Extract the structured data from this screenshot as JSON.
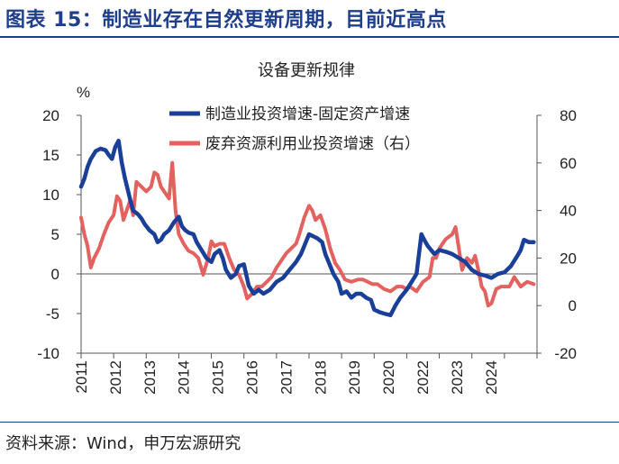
{
  "figure": {
    "title": "图表 15：制造业存在自然更新周期，目前近高点",
    "source": "资料来源：Wind，申万宏源研究"
  },
  "colors": {
    "series1": "#1a3f99",
    "series2": "#e3625f",
    "accent": "#1f3e8c"
  },
  "chart_data": {
    "type": "line",
    "title": "设备更新规律",
    "y_unit": "%",
    "ylim_left": [
      -10,
      20
    ],
    "yticks_left": [
      -10,
      -5,
      0,
      5,
      10,
      15,
      20
    ],
    "ylim_right": [
      -20,
      80
    ],
    "yticks_right": [
      -20,
      0,
      20,
      40,
      60,
      80
    ],
    "xlim": [
      2011,
      2025
    ],
    "x_tick_labels": [
      "2011",
      "2012",
      "2013",
      "2014",
      "2015",
      "2016",
      "2017",
      "2018",
      "2019",
      "2020",
      "2022",
      "2023",
      "2024"
    ],
    "legend_position": "top",
    "grid": false,
    "series": [
      {
        "name": "制造业投资增速-固定资产增速",
        "axis": "left",
        "x": [
          2011.0,
          2011.1,
          2011.2,
          2011.3,
          2011.45,
          2011.6,
          2011.75,
          2011.85,
          2011.95,
          2012.05,
          2012.15,
          2012.25,
          2012.35,
          2012.5,
          2012.6,
          2012.75,
          2012.85,
          2012.95,
          2013.1,
          2013.25,
          2013.35,
          2013.45,
          2013.55,
          2013.7,
          2013.85,
          2014.0,
          2014.1,
          2014.2,
          2014.3,
          2014.45,
          2014.55,
          2014.7,
          2014.85,
          2015.0,
          2015.1,
          2015.25,
          2015.35,
          2015.45,
          2015.6,
          2015.75,
          2015.85,
          2016.0,
          2016.15,
          2016.3,
          2016.45,
          2016.6,
          2016.8,
          2017.0,
          2017.2,
          2017.4,
          2017.6,
          2017.75,
          2017.9,
          2018.0,
          2018.1,
          2018.25,
          2018.4,
          2018.5,
          2018.6,
          2018.75,
          2018.9,
          2019.0,
          2019.15,
          2019.3,
          2019.45,
          2019.6,
          2019.75,
          2019.9,
          2020.0,
          2020.15,
          2020.3,
          2020.5,
          2020.65,
          2020.8,
          2021.0,
          2021.15,
          2021.3,
          2021.45,
          2021.55,
          2021.65,
          2021.75,
          2021.85,
          2022.0,
          2022.2,
          2022.4,
          2022.6,
          2022.8,
          2023.0,
          2023.2,
          2023.4,
          2023.6,
          2023.8,
          2024.0,
          2024.2,
          2024.4,
          2024.5,
          2024.6,
          2024.75,
          2024.9
        ],
        "values": [
          11.0,
          12,
          13.5,
          14.5,
          15.5,
          15.8,
          15.6,
          15,
          14.5,
          16,
          16.8,
          14,
          12,
          9.5,
          8,
          7.5,
          7,
          6.3,
          5.5,
          5,
          4,
          4.3,
          5,
          5.5,
          6.5,
          7.2,
          6,
          5.5,
          5.2,
          5,
          4,
          3,
          2,
          1.5,
          2.5,
          3,
          2,
          0.5,
          -0.5,
          0,
          1,
          1.2,
          -1.5,
          -2.5,
          -2,
          -2.5,
          -2,
          -1,
          -0.5,
          0.5,
          1.5,
          2.5,
          4,
          5,
          4.8,
          4.5,
          4,
          2.5,
          1.5,
          0,
          -1,
          -2.5,
          -2.2,
          -3,
          -2.5,
          -2.5,
          -3,
          -3.3,
          -4.5,
          -4.8,
          -5,
          -5.2,
          -4,
          -3,
          -2,
          -1,
          0,
          5,
          4.2,
          3.5,
          3,
          2.5,
          3,
          2.8,
          2.5,
          2,
          1.5,
          0.5,
          0,
          -0.2,
          -0.5,
          0,
          0.2,
          1,
          2.3,
          3,
          4.3,
          4,
          4
        ]
      },
      {
        "name": "废弃资源利用业投资增速（右）",
        "axis": "right",
        "x": [
          2011.0,
          2011.1,
          2011.2,
          2011.3,
          2011.4,
          2011.55,
          2011.7,
          2011.85,
          2012.0,
          2012.1,
          2012.2,
          2012.3,
          2012.4,
          2012.5,
          2012.6,
          2012.7,
          2012.85,
          2013.0,
          2013.15,
          2013.25,
          2013.35,
          2013.45,
          2013.55,
          2013.7,
          2013.8,
          2013.9,
          2014.0,
          2014.15,
          2014.3,
          2014.45,
          2014.6,
          2014.75,
          2014.9,
          2015.0,
          2015.1,
          2015.25,
          2015.4,
          2015.55,
          2015.7,
          2015.85,
          2016.0,
          2016.1,
          2016.25,
          2016.4,
          2016.55,
          2016.7,
          2016.85,
          2017.0,
          2017.1,
          2017.2,
          2017.3,
          2017.45,
          2017.6,
          2017.7,
          2017.85,
          2018.0,
          2018.1,
          2018.2,
          2018.35,
          2018.5,
          2018.65,
          2018.8,
          2018.95,
          2019.1,
          2019.3,
          2019.5,
          2019.65,
          2019.8,
          2019.95,
          2020.1,
          2020.3,
          2020.5,
          2020.7,
          2020.85,
          2021.0,
          2021.1,
          2021.3,
          2021.5,
          2021.7,
          2021.8,
          2021.9,
          2022.0,
          2022.2,
          2022.4,
          2022.5,
          2022.6,
          2022.7,
          2022.85,
          2023.0,
          2023.1,
          2023.2,
          2023.3,
          2023.4,
          2023.5,
          2023.6,
          2023.75,
          2023.9,
          2024.0,
          2024.15,
          2024.3,
          2024.5,
          2024.7,
          2024.9
        ],
        "values": [
          37,
          30,
          25,
          16,
          20,
          24,
          30,
          35,
          38,
          46,
          44,
          36,
          40,
          44,
          38,
          52,
          50,
          48,
          50,
          56,
          55,
          50,
          48,
          45,
          60,
          40,
          30,
          26,
          23,
          22,
          20,
          13,
          20,
          27,
          25,
          26,
          26,
          20,
          15,
          13,
          8,
          3,
          5,
          8,
          8,
          10,
          12,
          16,
          18,
          20,
          22,
          24,
          26,
          30,
          37,
          42,
          40,
          36,
          38,
          32,
          24,
          18,
          15,
          11,
          10,
          11,
          11,
          10,
          9,
          9,
          7,
          6,
          8,
          8,
          7,
          8,
          6,
          10,
          12,
          20,
          20,
          24,
          28,
          30,
          33,
          24,
          15,
          20,
          18,
          21,
          15,
          8,
          6,
          0,
          1,
          7,
          8,
          8,
          8,
          12,
          8,
          10,
          9
        ]
      }
    ]
  }
}
